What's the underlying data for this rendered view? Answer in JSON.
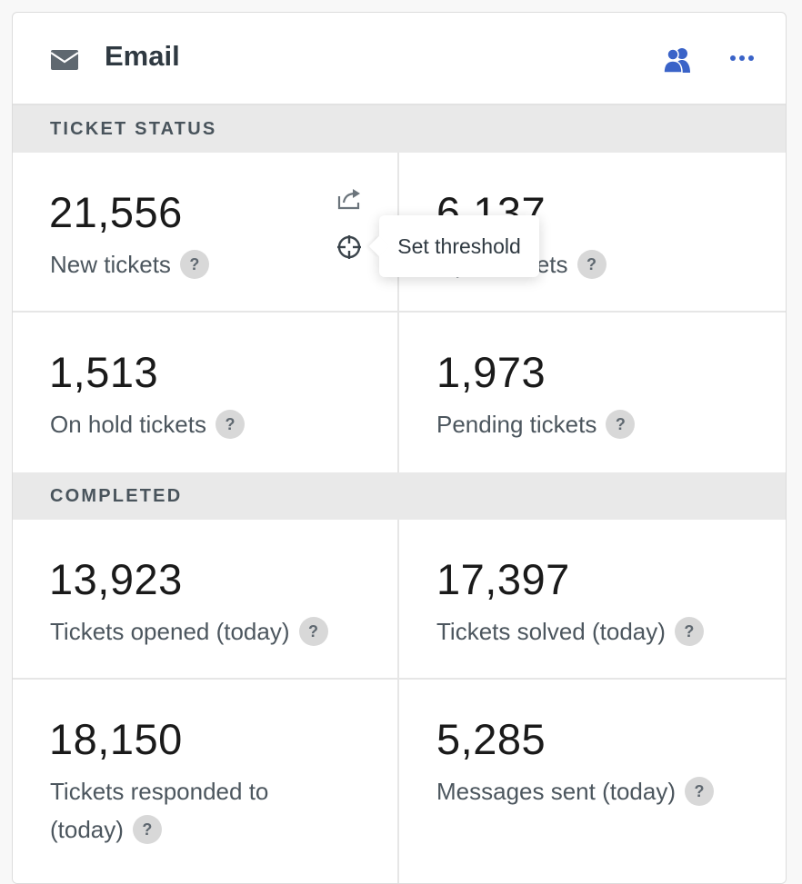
{
  "header": {
    "title": "Email",
    "icons": {
      "left": "mail-icon",
      "share_view": "users-icon",
      "menu": "more-icon"
    },
    "accent": "#3a63c8"
  },
  "sections": [
    {
      "label": "TICKET STATUS",
      "metrics": [
        {
          "value": "21,556",
          "label": "New tickets",
          "help": "?"
        },
        {
          "value": "6,137",
          "label": "Open tickets",
          "help": "?"
        },
        {
          "value": "1,513",
          "label": "On hold tickets",
          "help": "?"
        },
        {
          "value": "1,973",
          "label": "Pending tickets",
          "help": "?"
        }
      ]
    },
    {
      "label": "COMPLETED",
      "metrics": [
        {
          "value": "13,923",
          "label": "Tickets opened (today)",
          "help": "?"
        },
        {
          "value": "17,397",
          "label": "Tickets solved (today)",
          "help": "?"
        },
        {
          "value": "18,150",
          "label": "Tickets responded to (today)",
          "help": "?"
        },
        {
          "value": "5,285",
          "label": "Messages sent (today)",
          "help": "?"
        }
      ]
    }
  ],
  "hover_actions": {
    "icons": [
      "share-icon",
      "target-icon"
    ],
    "tooltip": "Set threshold"
  }
}
